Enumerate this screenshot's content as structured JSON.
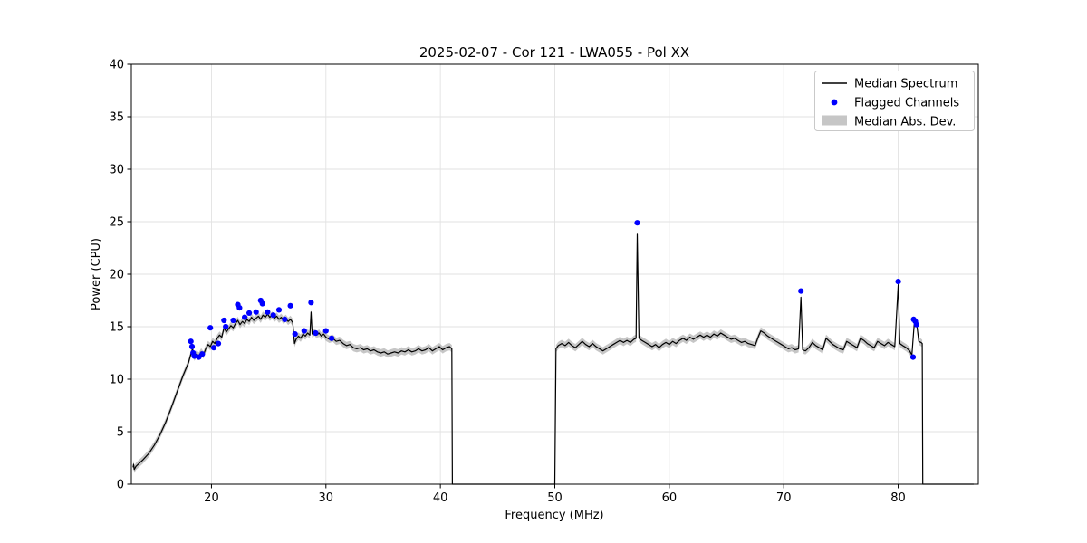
{
  "chart_data": {
    "type": "line",
    "title": "2025-02-07 - Cor 121 - LWA055 - Pol XX",
    "xlabel": "Frequency (MHz)",
    "ylabel": "Power (CPU)",
    "xlim": [
      13,
      87
    ],
    "ylim": [
      0,
      40
    ],
    "xticks": [
      20,
      30,
      40,
      50,
      60,
      70,
      80
    ],
    "yticks": [
      0,
      5,
      10,
      15,
      20,
      25,
      30,
      35,
      40
    ],
    "grid": true,
    "legend_position": "upper right",
    "mad": 0.35,
    "colors": {
      "line": "#000000",
      "flagged": "#0000ff",
      "band": "#808080",
      "grid": "#e2e2e2"
    },
    "legend": [
      {
        "label": "Median Spectrum",
        "type": "line",
        "color": "#000000"
      },
      {
        "label": "Flagged Channels",
        "type": "dot",
        "color": "#0000ff"
      },
      {
        "label": "Median Abs. Dev.",
        "type": "band",
        "color": "#c6c6c6"
      }
    ],
    "series": [
      {
        "name": "Median Spectrum",
        "points": [
          [
            13.15,
            1.6
          ],
          [
            13.2,
            1.9
          ],
          [
            13.25,
            1.4
          ],
          [
            13.4,
            1.7
          ],
          [
            13.7,
            2.0
          ],
          [
            14.0,
            2.3
          ],
          [
            14.5,
            2.9
          ],
          [
            15.0,
            3.7
          ],
          [
            15.5,
            4.7
          ],
          [
            16.0,
            5.9
          ],
          [
            16.5,
            7.3
          ],
          [
            17.0,
            8.8
          ],
          [
            17.5,
            10.3
          ],
          [
            18.0,
            11.6
          ],
          [
            18.2,
            12.4
          ],
          [
            18.35,
            12.9
          ],
          [
            18.5,
            12.1
          ],
          [
            18.7,
            12.4
          ],
          [
            18.9,
            12.2
          ],
          [
            19.1,
            12.6
          ],
          [
            19.3,
            12.3
          ],
          [
            19.5,
            12.9
          ],
          [
            19.7,
            13.3
          ],
          [
            19.9,
            13.1
          ],
          [
            20.1,
            13.6
          ],
          [
            20.3,
            13.4
          ],
          [
            20.5,
            13.9
          ],
          [
            20.7,
            14.2
          ],
          [
            20.9,
            14.0
          ],
          [
            21.1,
            14.9
          ],
          [
            21.3,
            14.5
          ],
          [
            21.5,
            14.8
          ],
          [
            21.7,
            15.1
          ],
          [
            21.9,
            14.9
          ],
          [
            22.1,
            15.3
          ],
          [
            22.3,
            15.6
          ],
          [
            22.5,
            15.2
          ],
          [
            22.7,
            15.5
          ],
          [
            22.9,
            15.3
          ],
          [
            23.1,
            15.7
          ],
          [
            23.3,
            15.5
          ],
          [
            23.5,
            15.9
          ],
          [
            23.7,
            15.6
          ],
          [
            23.9,
            15.8
          ],
          [
            24.1,
            16.0
          ],
          [
            24.3,
            15.7
          ],
          [
            24.5,
            16.1
          ],
          [
            24.7,
            15.9
          ],
          [
            24.9,
            16.2
          ],
          [
            25.1,
            15.9
          ],
          [
            25.3,
            16.1
          ],
          [
            25.5,
            15.8
          ],
          [
            25.7,
            16.0
          ],
          [
            25.9,
            15.7
          ],
          [
            26.1,
            15.9
          ],
          [
            26.3,
            15.6
          ],
          [
            26.5,
            15.8
          ],
          [
            26.7,
            15.5
          ],
          [
            26.9,
            15.7
          ],
          [
            27.1,
            15.4
          ],
          [
            27.25,
            13.4
          ],
          [
            27.4,
            13.8
          ],
          [
            27.6,
            14.1
          ],
          [
            27.8,
            13.9
          ],
          [
            28.0,
            14.3
          ],
          [
            28.2,
            14.1
          ],
          [
            28.4,
            14.4
          ],
          [
            28.6,
            14.2
          ],
          [
            28.7,
            16.4
          ],
          [
            28.8,
            14.3
          ],
          [
            29.0,
            14.5
          ],
          [
            29.2,
            14.2
          ],
          [
            29.4,
            14.4
          ],
          [
            29.6,
            14.1
          ],
          [
            29.8,
            14.3
          ],
          [
            30.0,
            14.0
          ],
          [
            30.3,
            13.8
          ],
          [
            30.6,
            13.9
          ],
          [
            30.9,
            13.6
          ],
          [
            31.2,
            13.7
          ],
          [
            31.5,
            13.4
          ],
          [
            31.8,
            13.2
          ],
          [
            32.1,
            13.3
          ],
          [
            32.4,
            13.0
          ],
          [
            32.7,
            12.9
          ],
          [
            33.0,
            13.0
          ],
          [
            33.3,
            12.8
          ],
          [
            33.6,
            12.9
          ],
          [
            33.9,
            12.7
          ],
          [
            34.2,
            12.8
          ],
          [
            34.5,
            12.6
          ],
          [
            34.8,
            12.5
          ],
          [
            35.1,
            12.6
          ],
          [
            35.4,
            12.4
          ],
          [
            35.7,
            12.5
          ],
          [
            36.0,
            12.6
          ],
          [
            36.3,
            12.5
          ],
          [
            36.6,
            12.7
          ],
          [
            36.9,
            12.6
          ],
          [
            37.2,
            12.8
          ],
          [
            37.5,
            12.6
          ],
          [
            37.8,
            12.7
          ],
          [
            38.1,
            12.9
          ],
          [
            38.4,
            12.7
          ],
          [
            38.7,
            12.8
          ],
          [
            39.0,
            13.0
          ],
          [
            39.3,
            12.7
          ],
          [
            39.6,
            12.9
          ],
          [
            39.9,
            13.1
          ],
          [
            40.2,
            12.8
          ],
          [
            40.5,
            13.0
          ],
          [
            40.8,
            13.1
          ],
          [
            41.0,
            12.9
          ],
          [
            41.05,
            0
          ],
          [
            50.0,
            0
          ],
          [
            50.1,
            12.9
          ],
          [
            50.3,
            13.2
          ],
          [
            50.6,
            13.4
          ],
          [
            50.9,
            13.2
          ],
          [
            51.2,
            13.5
          ],
          [
            51.5,
            13.2
          ],
          [
            51.8,
            13.0
          ],
          [
            52.1,
            13.3
          ],
          [
            52.4,
            13.6
          ],
          [
            52.7,
            13.3
          ],
          [
            53.0,
            13.1
          ],
          [
            53.3,
            13.4
          ],
          [
            53.6,
            13.1
          ],
          [
            53.9,
            12.9
          ],
          [
            54.2,
            12.7
          ],
          [
            54.5,
            12.9
          ],
          [
            54.8,
            13.1
          ],
          [
            55.1,
            13.3
          ],
          [
            55.4,
            13.5
          ],
          [
            55.7,
            13.7
          ],
          [
            56.0,
            13.5
          ],
          [
            56.3,
            13.7
          ],
          [
            56.6,
            13.5
          ],
          [
            56.9,
            13.8
          ],
          [
            57.1,
            13.9
          ],
          [
            57.2,
            23.8
          ],
          [
            57.35,
            13.9
          ],
          [
            57.6,
            13.7
          ],
          [
            57.9,
            13.5
          ],
          [
            58.2,
            13.3
          ],
          [
            58.5,
            13.1
          ],
          [
            58.8,
            13.3
          ],
          [
            59.1,
            13.0
          ],
          [
            59.4,
            13.3
          ],
          [
            59.7,
            13.5
          ],
          [
            60.0,
            13.3
          ],
          [
            60.3,
            13.6
          ],
          [
            60.6,
            13.4
          ],
          [
            60.9,
            13.7
          ],
          [
            61.2,
            13.9
          ],
          [
            61.5,
            13.7
          ],
          [
            61.8,
            14.0
          ],
          [
            62.1,
            13.8
          ],
          [
            62.4,
            14.0
          ],
          [
            62.7,
            14.2
          ],
          [
            63.0,
            14.0
          ],
          [
            63.3,
            14.2
          ],
          [
            63.6,
            14.0
          ],
          [
            63.9,
            14.3
          ],
          [
            64.2,
            14.1
          ],
          [
            64.5,
            14.4
          ],
          [
            64.8,
            14.2
          ],
          [
            65.1,
            14.0
          ],
          [
            65.4,
            13.8
          ],
          [
            65.7,
            13.9
          ],
          [
            66.0,
            13.7
          ],
          [
            66.3,
            13.5
          ],
          [
            66.6,
            13.6
          ],
          [
            66.9,
            13.4
          ],
          [
            67.2,
            13.3
          ],
          [
            67.5,
            13.2
          ],
          [
            67.8,
            14.1
          ],
          [
            68.0,
            14.6
          ],
          [
            68.3,
            14.4
          ],
          [
            68.6,
            14.1
          ],
          [
            68.9,
            13.9
          ],
          [
            69.2,
            13.7
          ],
          [
            69.5,
            13.5
          ],
          [
            69.8,
            13.3
          ],
          [
            70.1,
            13.1
          ],
          [
            70.4,
            12.9
          ],
          [
            70.7,
            13.0
          ],
          [
            71.0,
            12.8
          ],
          [
            71.3,
            12.9
          ],
          [
            71.5,
            17.8
          ],
          [
            71.65,
            12.8
          ],
          [
            71.9,
            12.7
          ],
          [
            72.2,
            13.0
          ],
          [
            72.5,
            13.5
          ],
          [
            72.8,
            13.2
          ],
          [
            73.1,
            13.0
          ],
          [
            73.4,
            12.8
          ],
          [
            73.7,
            13.9
          ],
          [
            74.0,
            13.6
          ],
          [
            74.3,
            13.3
          ],
          [
            74.6,
            13.1
          ],
          [
            74.9,
            12.9
          ],
          [
            75.2,
            12.8
          ],
          [
            75.5,
            13.6
          ],
          [
            75.8,
            13.4
          ],
          [
            76.1,
            13.2
          ],
          [
            76.4,
            13.0
          ],
          [
            76.7,
            13.9
          ],
          [
            77.0,
            13.7
          ],
          [
            77.3,
            13.4
          ],
          [
            77.6,
            13.2
          ],
          [
            77.9,
            13.0
          ],
          [
            78.2,
            13.6
          ],
          [
            78.5,
            13.4
          ],
          [
            78.8,
            13.2
          ],
          [
            79.1,
            13.5
          ],
          [
            79.4,
            13.3
          ],
          [
            79.7,
            13.1
          ],
          [
            80.0,
            19.0
          ],
          [
            80.15,
            13.4
          ],
          [
            80.4,
            13.2
          ],
          [
            80.7,
            13.0
          ],
          [
            81.0,
            12.7
          ],
          [
            81.2,
            12.3
          ],
          [
            81.4,
            15.2
          ],
          [
            81.6,
            15.4
          ],
          [
            81.8,
            13.6
          ],
          [
            82.0,
            13.5
          ],
          [
            82.1,
            13.4
          ],
          [
            82.15,
            0
          ],
          [
            86.6,
            0
          ]
        ]
      },
      {
        "name": "Flagged Channels",
        "points": [
          [
            18.2,
            13.6
          ],
          [
            18.3,
            13.1
          ],
          [
            18.4,
            12.5
          ],
          [
            18.5,
            12.2
          ],
          [
            18.9,
            12.1
          ],
          [
            19.2,
            12.4
          ],
          [
            19.9,
            14.9
          ],
          [
            20.2,
            13.0
          ],
          [
            20.6,
            13.4
          ],
          [
            21.1,
            15.6
          ],
          [
            21.25,
            15.0
          ],
          [
            21.9,
            15.6
          ],
          [
            22.3,
            17.1
          ],
          [
            22.45,
            16.8
          ],
          [
            22.9,
            15.9
          ],
          [
            23.3,
            16.3
          ],
          [
            23.9,
            16.4
          ],
          [
            24.3,
            17.5
          ],
          [
            24.45,
            17.2
          ],
          [
            24.9,
            16.4
          ],
          [
            25.4,
            16.1
          ],
          [
            25.9,
            16.6
          ],
          [
            26.4,
            15.7
          ],
          [
            26.9,
            17.0
          ],
          [
            27.3,
            14.3
          ],
          [
            28.1,
            14.6
          ],
          [
            28.7,
            17.3
          ],
          [
            29.1,
            14.4
          ],
          [
            30.0,
            14.6
          ],
          [
            30.5,
            13.9
          ],
          [
            57.2,
            24.9
          ],
          [
            71.5,
            18.4
          ],
          [
            80.0,
            19.3
          ],
          [
            81.3,
            12.1
          ],
          [
            81.35,
            15.7
          ],
          [
            81.5,
            15.5
          ],
          [
            81.6,
            15.2
          ]
        ]
      }
    ]
  }
}
